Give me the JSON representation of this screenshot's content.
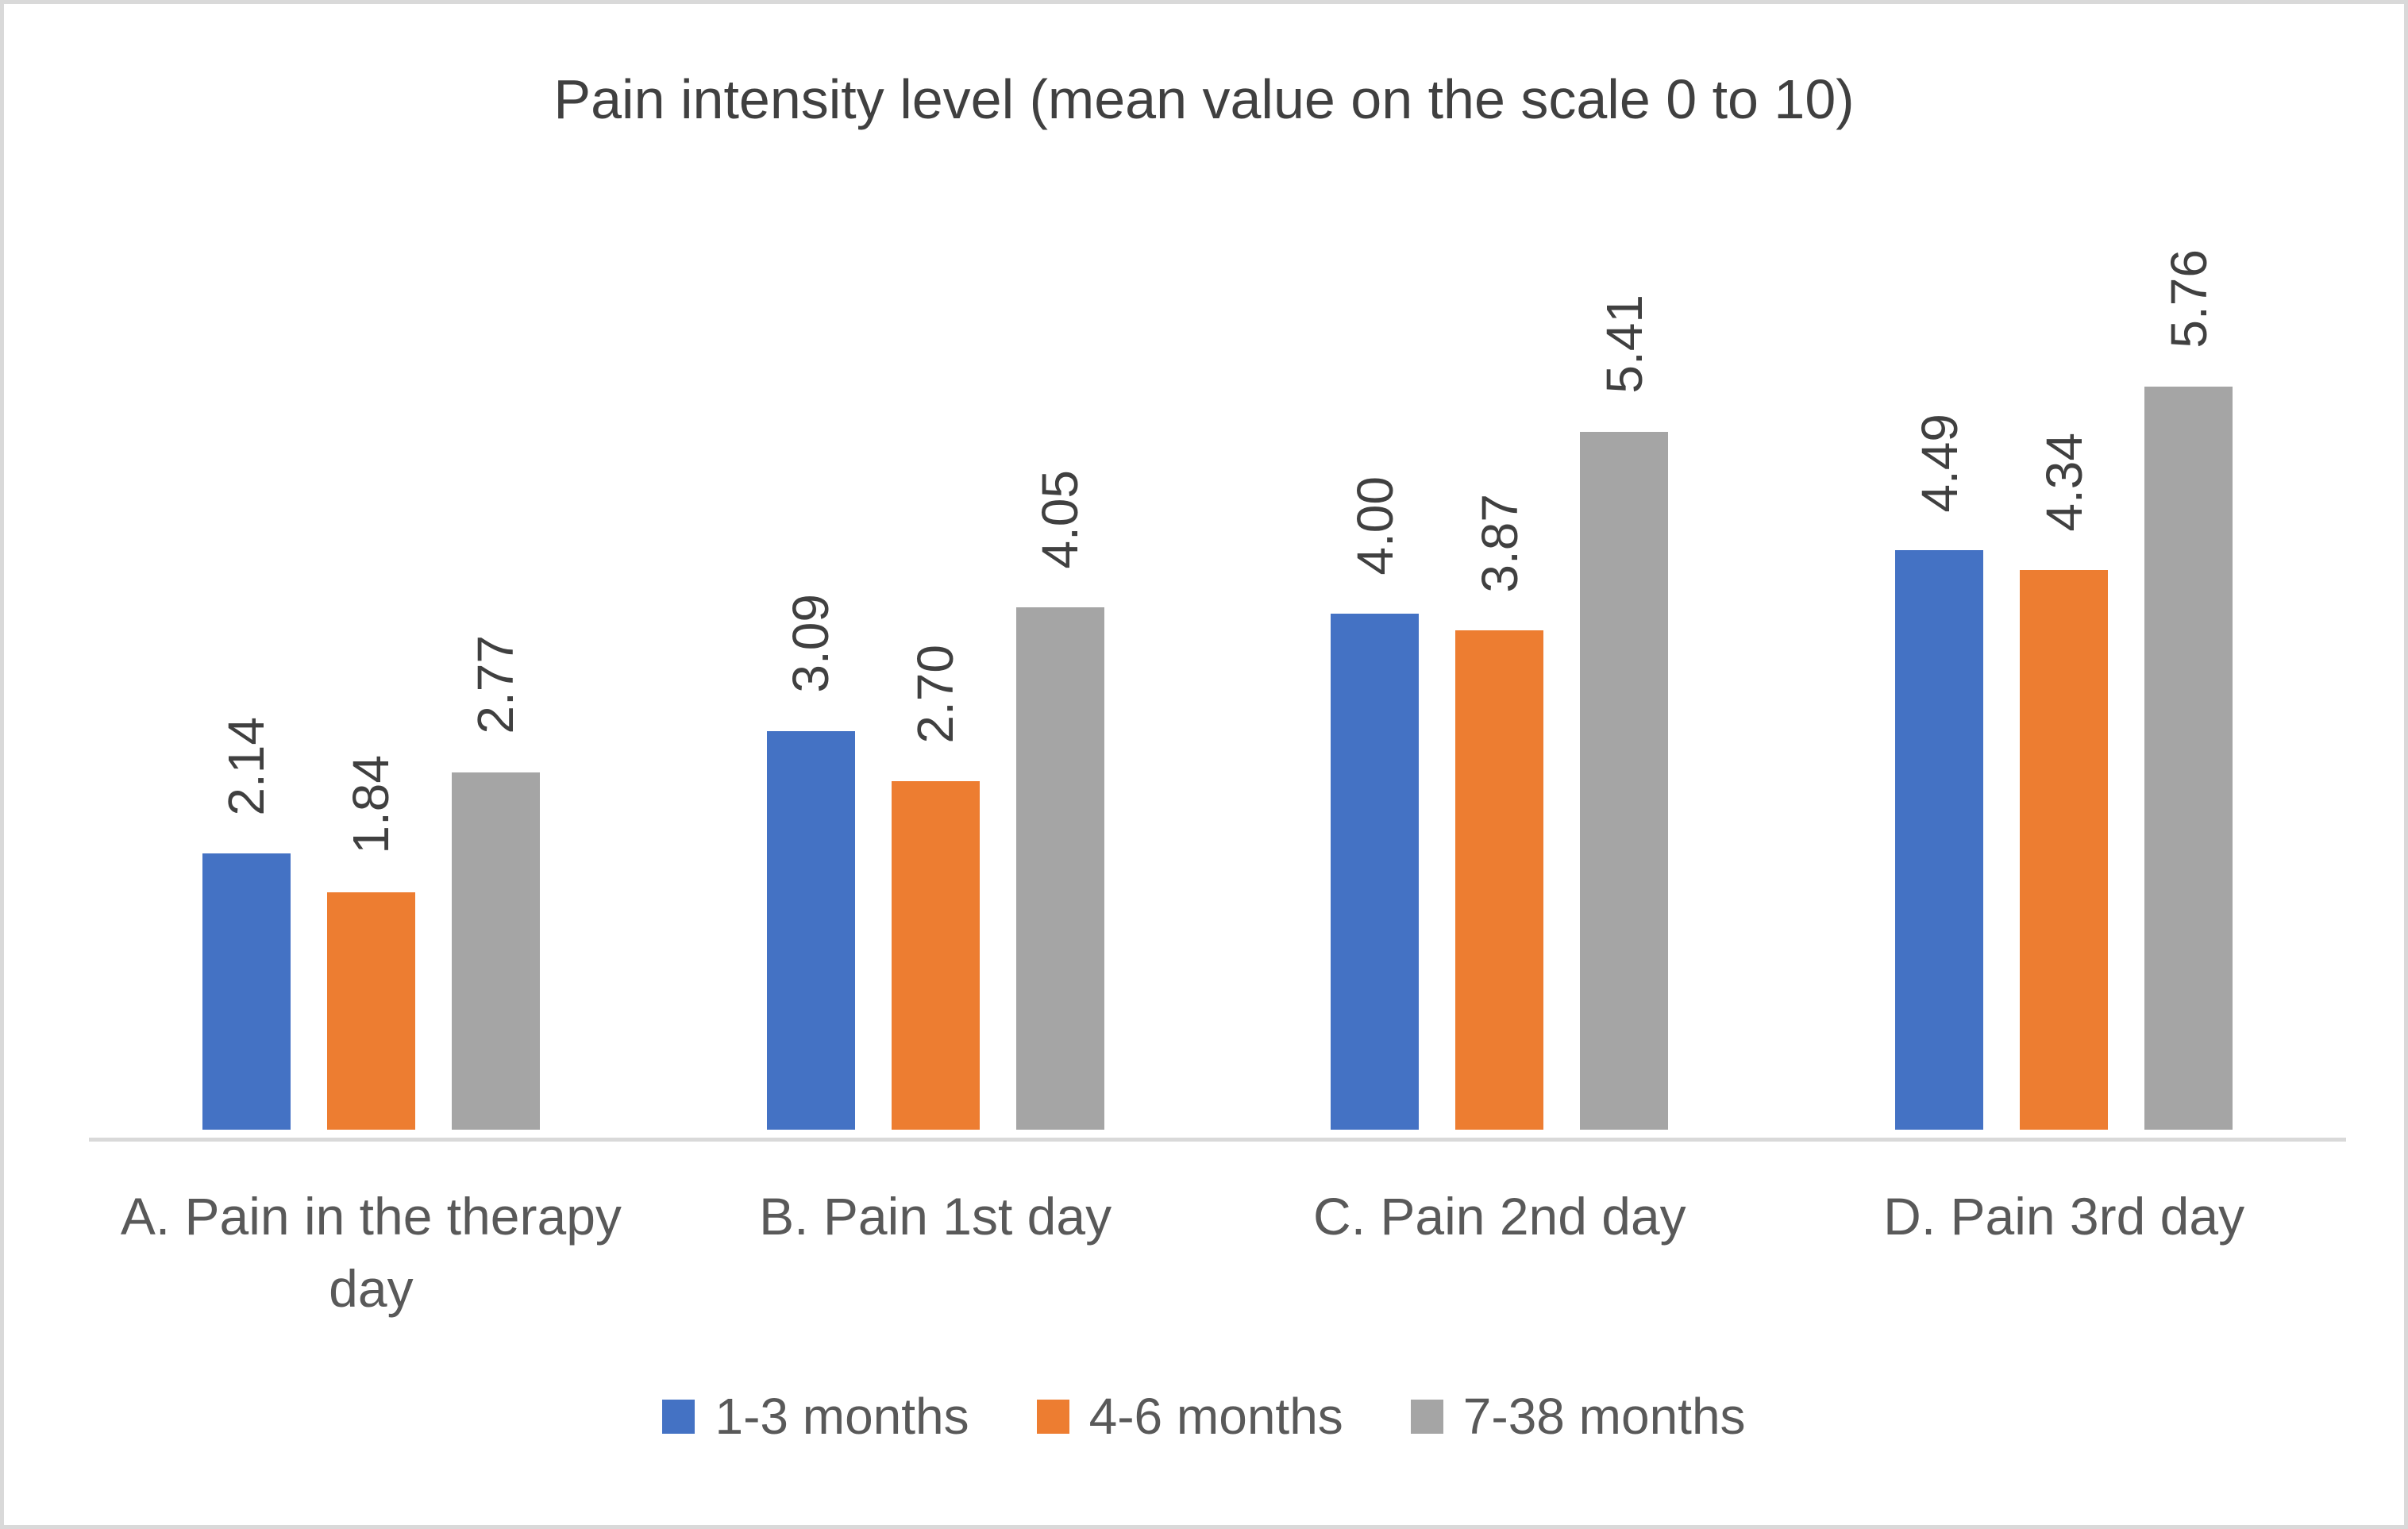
{
  "chart_data": {
    "type": "bar",
    "title": "Pain intensity level (mean value on the scale 0 to 10)",
    "categories": [
      "A. Pain in the therapy day",
      "B. Pain 1st day",
      "C. Pain 2nd day",
      "D. Pain 3rd day"
    ],
    "series": [
      {
        "name": "1-3 months",
        "color": "#4472C4",
        "values": [
          2.14,
          3.09,
          4.0,
          4.49
        ],
        "labels": [
          "2.14",
          "3.09",
          "4.00",
          "4.49"
        ]
      },
      {
        "name": "4-6 months",
        "color": "#ED7D31",
        "values": [
          1.84,
          2.7,
          3.87,
          4.34
        ],
        "labels": [
          "1.84",
          "2.70",
          "3.87",
          "4.34"
        ]
      },
      {
        "name": "7-38 months",
        "color": "#A5A5A5",
        "values": [
          2.77,
          4.05,
          5.41,
          5.76
        ],
        "labels": [
          "2.77",
          "4.05",
          "5.41",
          "5.76"
        ]
      }
    ],
    "xlabel": "",
    "ylabel": "",
    "ylim": [
      0,
      7
    ],
    "grid": false,
    "y_axis_visible": false,
    "data_label_rotation": -90,
    "legend_position": "bottom",
    "axis_line_color": "#d9d9d9",
    "text_color_dark": "#404040",
    "text_color_gray": "#595959"
  }
}
